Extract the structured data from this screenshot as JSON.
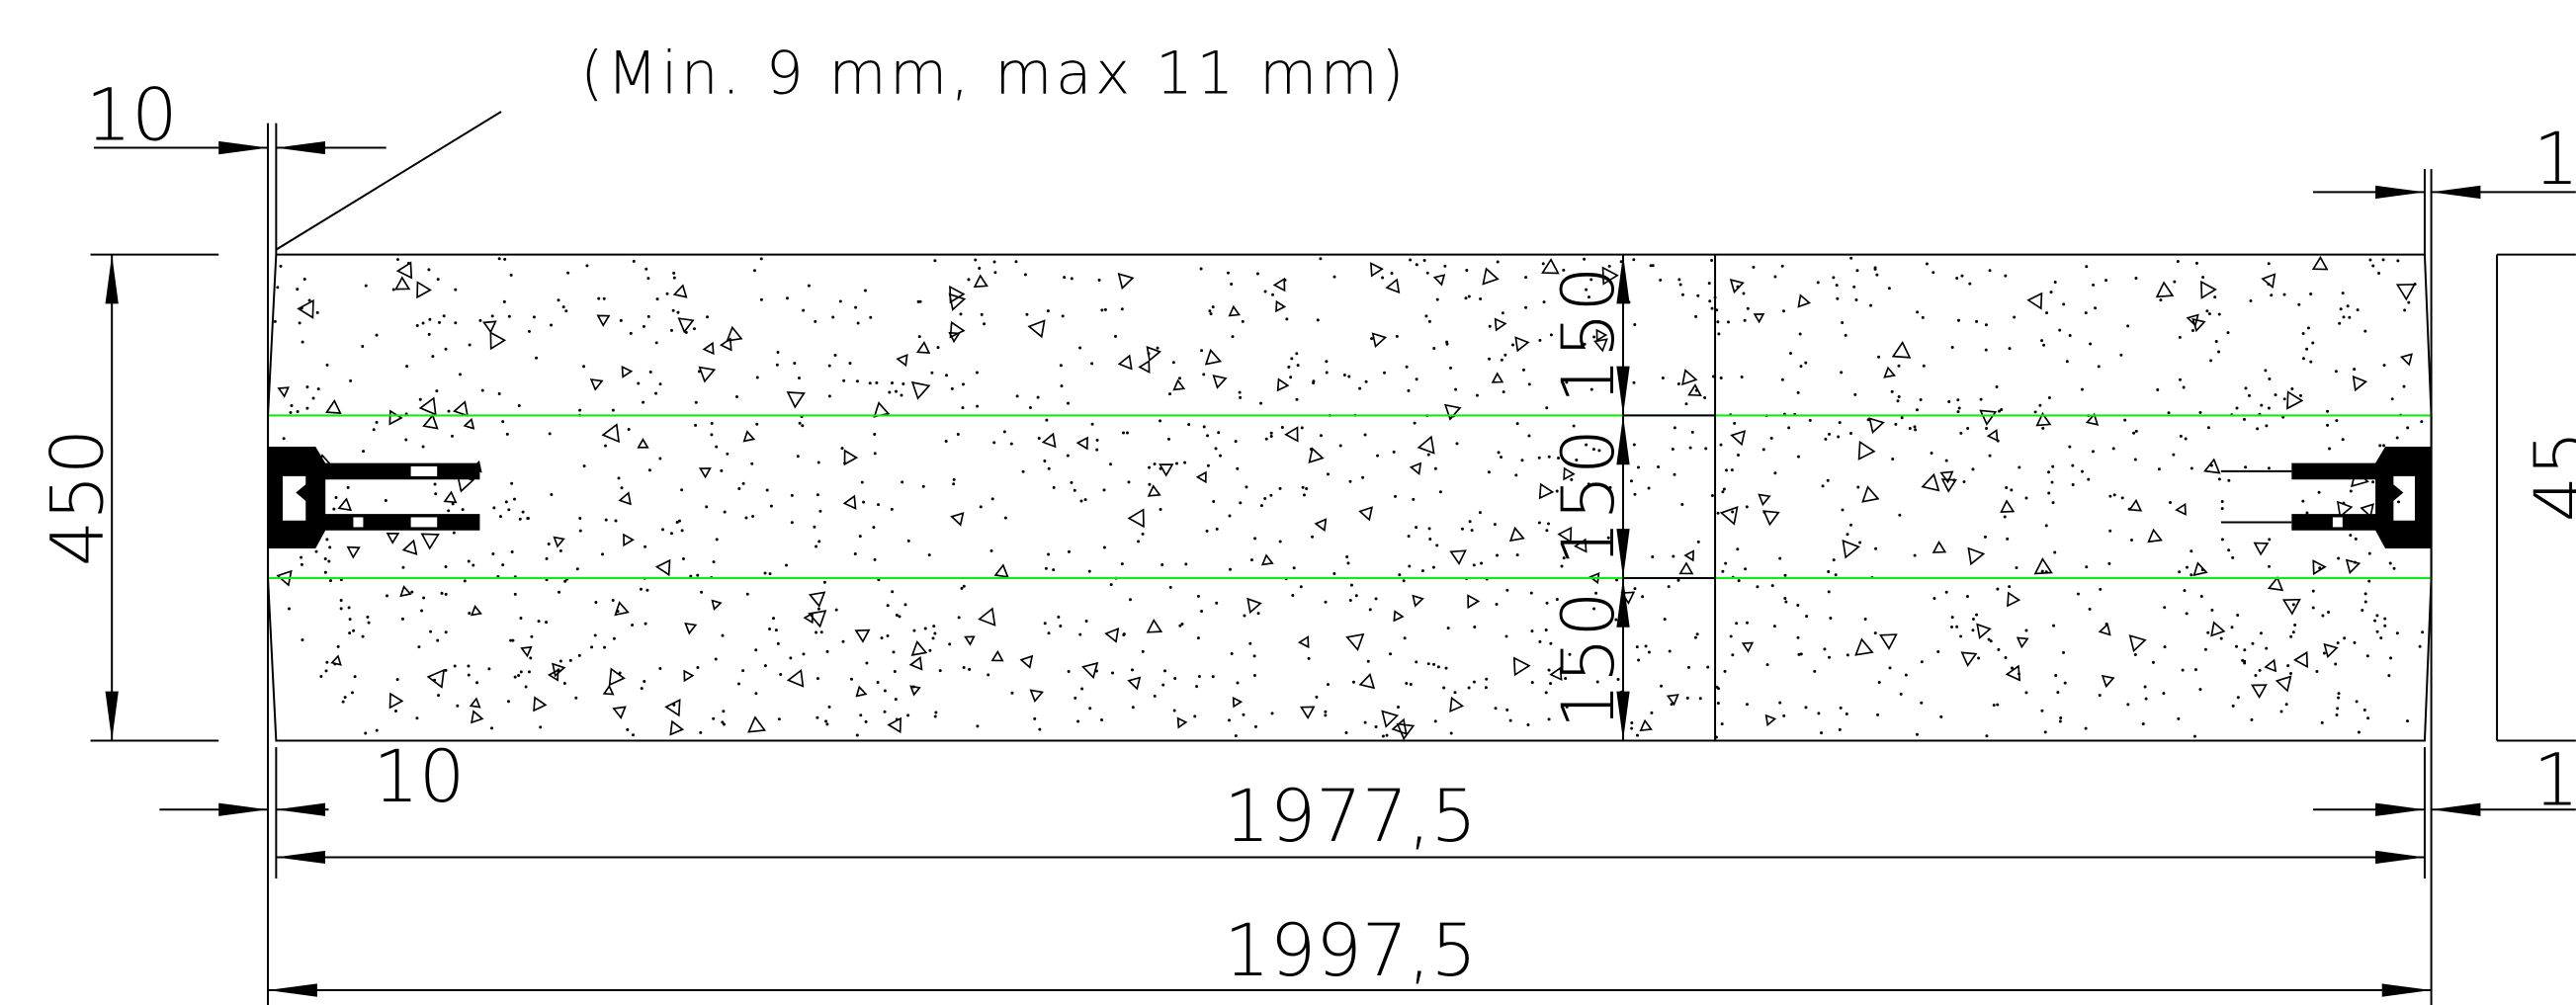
{
  "note": "(Min. 9 mm, max 11 mm)",
  "dimensions": {
    "gap_top_left": "10",
    "height_left": "450",
    "gap_bottom_left": "10",
    "inner_length": "1977,5",
    "outer_length": "1997,5",
    "layer_top": "150",
    "layer_middle": "150",
    "layer_bottom": "150",
    "gap_top_right": "1",
    "height_right": "45",
    "gap_bottom_right": "1"
  }
}
